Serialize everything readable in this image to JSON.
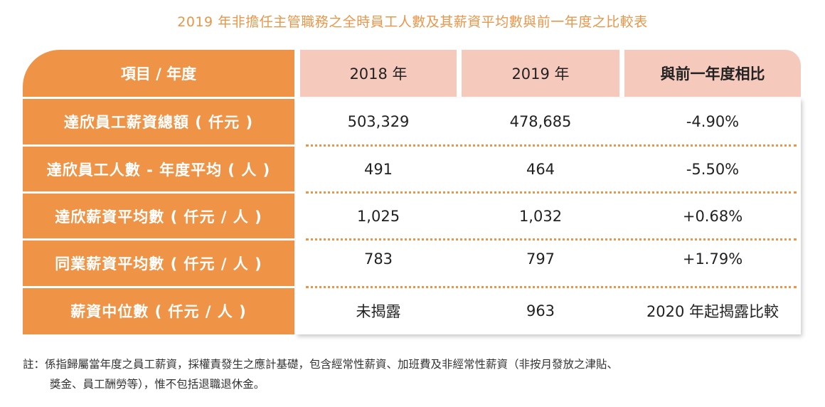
{
  "title": "2019 年非擔任主管職務之全時員工人數及其薪資平均數與前一年度之比較表",
  "header": {
    "item": "項目 / 年度",
    "y2018": "2018 年",
    "y2019": "2019 年",
    "compare": "與前一年度相比"
  },
  "rows": [
    {
      "label": "達欣員工薪資總額 ( 仟元 )",
      "y2018": "503,329",
      "y2019": "478,685",
      "compare": "-4.90%"
    },
    {
      "label": "達欣員工人數 - 年度平均 ( 人 )",
      "y2018": "491",
      "y2019": "464",
      "compare": "-5.50%"
    },
    {
      "label": "達欣薪資平均數 ( 仟元 / 人 )",
      "y2018": "1,025",
      "y2019": "1,032",
      "compare": "+0.68%"
    },
    {
      "label": "同業薪資平均數 ( 仟元 / 人 )",
      "y2018": "783",
      "y2019": "797",
      "compare": "+1.79%"
    },
    {
      "label": "薪資中位數 ( 仟元 / 人 )",
      "y2018": "未揭露",
      "y2019": "963",
      "compare": "2020 年起揭露比較"
    }
  ],
  "note": {
    "line1": "註：係指歸屬當年度之員工薪資，採權責發生之應計基礎，包含經常性薪資、加班費及非經常性薪資（非按月發放之津貼、",
    "line2": "獎金、員工酬勞等），惟不包括退職退休金。"
  }
}
